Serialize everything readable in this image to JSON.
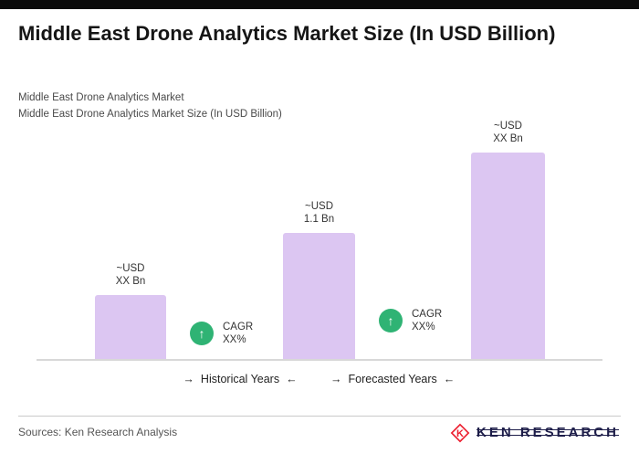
{
  "header": {
    "title": "Middle East Drone Analytics Market Size (In USD Billion)",
    "subtitle_line1": "Middle East Drone Analytics Market",
    "subtitle_line2": "Middle East Drone Analytics Market Size (In USD Billion)"
  },
  "chart_data": {
    "type": "bar",
    "title": "Middle East Drone Analytics Market Size (In USD Billion)",
    "bars": [
      {
        "period": "Historical Years",
        "value_label": "~USD\nXX Bn",
        "height_ratio": 0.31
      },
      {
        "period": "Historical Years",
        "value_label": "~USD\n1.1 Bn",
        "height_ratio": 0.61
      },
      {
        "period": "Forecasted Years",
        "value_label": "~USD\nXX Bn",
        "height_ratio": 1.0
      }
    ],
    "bar_color": "#dcc6f2",
    "annotations": [
      {
        "label": "CAGR\nXX%",
        "icon": "growth-up-arrow",
        "arrow_glyph": "↑"
      },
      {
        "label": "CAGR\nXX%",
        "icon": "growth-up-arrow",
        "arrow_glyph": "↑"
      }
    ],
    "annotation_color": "#2fb374",
    "x_groups": [
      {
        "arrow_in": "→",
        "label": "Historical Years",
        "arrow_back": "←"
      },
      {
        "arrow_in": "→",
        "label": "Forecasted Years",
        "arrow_back": "←"
      }
    ],
    "gridlines": false,
    "legend": "none",
    "y_axis": "hidden"
  },
  "footer": {
    "sources": "Sources: Ken Research Analysis",
    "logo_text": "KEN RESEARCH",
    "logo_color_red": "#ec1c2d",
    "logo_color_navy": "#1d1d49"
  }
}
